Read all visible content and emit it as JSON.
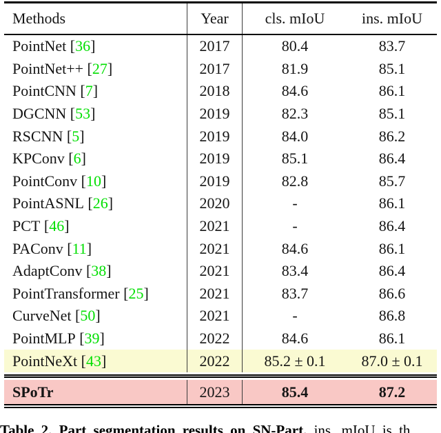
{
  "table": {
    "headers": [
      "Methods",
      "Year",
      "cls. mIoU",
      "ins. mIoU"
    ],
    "rows": [
      {
        "method": "PointNet",
        "cite": "36",
        "year": "2017",
        "cls": "80.4",
        "ins": "83.7",
        "highlight": "none"
      },
      {
        "method": "PointNet++",
        "cite": "27",
        "year": "2017",
        "cls": "81.9",
        "ins": "85.1",
        "highlight": "none"
      },
      {
        "method": "PointCNN",
        "cite": "7",
        "year": "2018",
        "cls": "84.6",
        "ins": "86.1",
        "highlight": "none"
      },
      {
        "method": "DGCNN",
        "cite": "53",
        "year": "2019",
        "cls": "82.3",
        "ins": "85.1",
        "highlight": "none"
      },
      {
        "method": "RSCNN",
        "cite": "5",
        "year": "2019",
        "cls": "84.0",
        "ins": "86.2",
        "highlight": "none"
      },
      {
        "method": "KPConv",
        "cite": "6",
        "year": "2019",
        "cls": "85.1",
        "ins": "86.4",
        "highlight": "none"
      },
      {
        "method": "PointConv",
        "cite": "10",
        "year": "2019",
        "cls": "82.8",
        "ins": "85.7",
        "highlight": "none"
      },
      {
        "method": "PointASNL",
        "cite": "26",
        "year": "2020",
        "cls": "-",
        "ins": "86.1",
        "highlight": "none"
      },
      {
        "method": "PCT",
        "cite": "46",
        "year": "2021",
        "cls": "-",
        "ins": "86.4",
        "highlight": "none"
      },
      {
        "method": "PAConv",
        "cite": "11",
        "year": "2021",
        "cls": "84.6",
        "ins": "86.1",
        "highlight": "none"
      },
      {
        "method": "AdaptConv",
        "cite": "38",
        "year": "2021",
        "cls": "83.4",
        "ins": "86.4",
        "highlight": "none"
      },
      {
        "method": "PointTransformer",
        "cite": "25",
        "year": "2021",
        "cls": "83.7",
        "ins": "86.6",
        "highlight": "none"
      },
      {
        "method": "CurveNet",
        "cite": "50",
        "year": "2021",
        "cls": "-",
        "ins": "86.8",
        "highlight": "none"
      },
      {
        "method": "PointMLP",
        "cite": "39",
        "year": "2022",
        "cls": "84.6",
        "ins": "86.1",
        "highlight": "none"
      },
      {
        "method": "PointNeXt",
        "cite": "43",
        "year": "2022",
        "cls": "85.2 ± 0.1",
        "ins": "87.0 ± 0.1",
        "highlight": "yellow"
      },
      {
        "method": "SPoTr",
        "cite": "",
        "year": "2023",
        "cls": "85.4",
        "ins": "87.2",
        "highlight": "pink",
        "emphasis": true,
        "rule_before": true
      }
    ]
  },
  "caption": {
    "bold": "Table 2. Part segmentation results on SN-Part.",
    "rest": " ins. mIoU is th"
  },
  "colors": {
    "citation_green": "#00DF00",
    "highlight_yellow": "#FAFAD2",
    "highlight_pink": "#F9C8C5",
    "rule_black": "#000000"
  }
}
